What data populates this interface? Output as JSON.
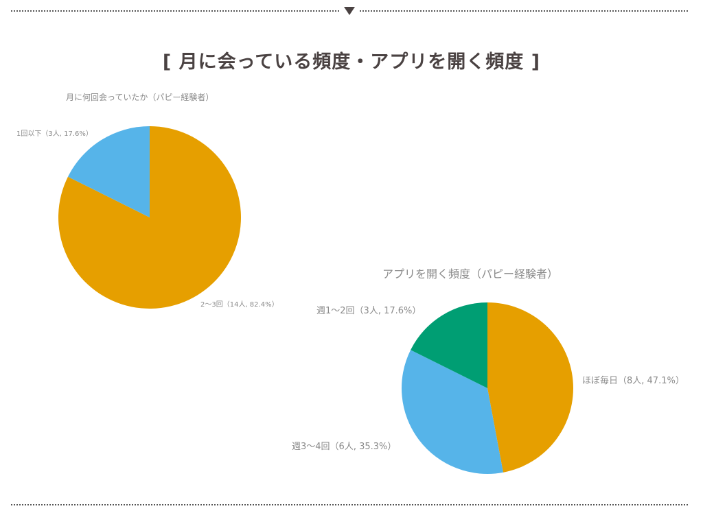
{
  "header": {
    "title": "[ 月に会っている頻度・アプリを開く頻度 ]",
    "divider_marker": "down-triangle"
  },
  "colors": {
    "orange": "#E69F00",
    "sky_blue": "#56B4E9",
    "green": "#009E73",
    "text_gray": "#8a8a8a",
    "title_dark": "#4a4242"
  },
  "chart_data": [
    {
      "type": "pie",
      "title": "月に何回会っていたか（パピー経験者）",
      "categories": [
        "2〜3回",
        "1回以下"
      ],
      "values": [
        14,
        3
      ],
      "percentages": [
        82.4,
        17.6
      ],
      "unit": "人",
      "colors": [
        "#E69F00",
        "#56B4E9"
      ],
      "labels": [
        "2〜3回（14人, 82.4%）",
        "1回以下（3人, 17.6%）"
      ],
      "start_angle": "12 o'clock, clockwise"
    },
    {
      "type": "pie",
      "title": "アプリを開く頻度（パピー経験者）",
      "categories": [
        "ほぼ毎日",
        "週3〜4回",
        "週1〜2回"
      ],
      "values": [
        8,
        6,
        3
      ],
      "percentages": [
        47.1,
        35.3,
        17.6
      ],
      "unit": "人",
      "colors": [
        "#E69F00",
        "#56B4E9",
        "#009E73"
      ],
      "labels": [
        "ほぼ毎日（8人, 47.1%）",
        "週3〜4回（6人, 35.3%）",
        "週1〜2回（3人, 17.6%）"
      ],
      "start_angle": "12 o'clock, clockwise"
    }
  ]
}
